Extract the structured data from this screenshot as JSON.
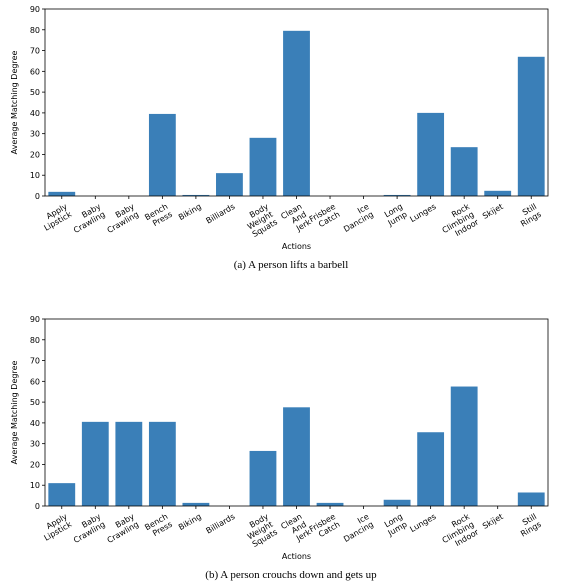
{
  "chart_data": [
    {
      "type": "bar",
      "caption": "(a)  A person lifts a barbell",
      "xlabel": "Actions",
      "ylabel": "Average Matching Degree",
      "categories": [
        "Apply Lipstick",
        "Baby Crawling",
        "Baby Crawling",
        "Bench Press",
        "Biking",
        "Billiards",
        "Body Weight Squats",
        "Clean And Jerk",
        "Frisbee Catch",
        "Ice Dancing",
        "Long Jump",
        "Lunges",
        "Rock Climbing Indoor",
        "Skijet",
        "Still Rings"
      ],
      "values": [
        2,
        0,
        0,
        39.5,
        0.5,
        11,
        28,
        79.5,
        0,
        0,
        0.5,
        40,
        23.5,
        2.5,
        67
      ],
      "color": "#3a7fb8",
      "ylim": [
        0,
        90
      ],
      "yticks": [
        0,
        10,
        20,
        30,
        40,
        50,
        60,
        70,
        80,
        90
      ]
    },
    {
      "type": "bar",
      "caption": "(b)  A person crouchs down and gets up",
      "xlabel": "Actions",
      "ylabel": "Average Matching Degree",
      "categories": [
        "Apply Lipstick",
        "Baby Crawling",
        "Baby Crawling",
        "Bench Press",
        "Biking",
        "Billiards",
        "Body Weight Squats",
        "Clean And Jerk",
        "Frisbee Catch",
        "Ice Dancing",
        "Long Jump",
        "Lunges",
        "Rock Climbing Indoor",
        "Skijet",
        "Still Rings"
      ],
      "values": [
        11,
        40.5,
        40.5,
        40.5,
        1.5,
        0,
        26.5,
        47.5,
        1.5,
        0,
        3,
        35.5,
        57.5,
        0,
        6.5
      ],
      "color": "#3a7fb8",
      "ylim": [
        0,
        90
      ],
      "yticks": [
        0,
        10,
        20,
        30,
        40,
        50,
        60,
        70,
        80,
        90
      ]
    }
  ]
}
